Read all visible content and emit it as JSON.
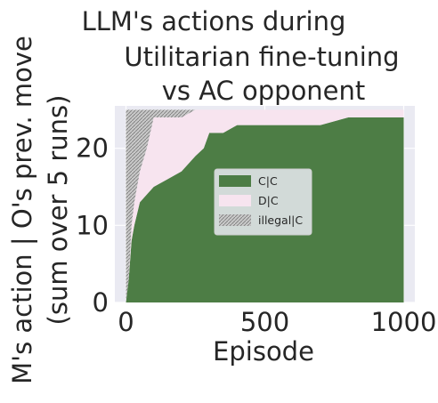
{
  "chart_data": {
    "type": "area",
    "title": [
      "LLM's actions during",
      "Utilitarian fine-tuning",
      "vs AC opponent"
    ],
    "xlabel": "Episode",
    "ylabel": [
      "M's action | O's prev. move",
      "(sum over 5 runs)"
    ],
    "xlim": [
      -40,
      1040
    ],
    "ylim": [
      0,
      25.5
    ],
    "xticks": [
      0,
      500,
      1000
    ],
    "yticks": [
      0,
      10,
      20
    ],
    "grid": true,
    "legend_position": "center",
    "colors": {
      "C|C": "#4d7d45",
      "D|C": "#f7e4ef",
      "illegal|C": "#9e9e9e",
      "plot_bg": "#eaeaf2"
    },
    "series": [
      {
        "name": "C|C",
        "x": [
          0,
          10,
          20,
          30,
          50,
          75,
          100,
          150,
          200,
          250,
          280,
          300,
          350,
          400,
          500,
          600,
          700,
          800,
          900,
          1000
        ],
        "values": [
          0,
          3,
          8,
          10,
          13,
          14,
          15,
          16,
          17,
          19,
          20,
          22,
          22,
          23,
          23,
          23,
          23,
          24,
          24,
          24
        ]
      },
      {
        "name": "D|C",
        "x": [
          0,
          10,
          20,
          30,
          50,
          75,
          100,
          150,
          200,
          250,
          280,
          300,
          350,
          400,
          500,
          600,
          700,
          800,
          900,
          1000
        ],
        "values": [
          0,
          0,
          2,
          3,
          4,
          6,
          9,
          8,
          7,
          6,
          5,
          3,
          3,
          2,
          2,
          2,
          2,
          1,
          1,
          1
        ]
      },
      {
        "name": "illegal|C",
        "x": [
          0,
          10,
          20,
          30,
          50,
          75,
          100,
          150,
          200,
          250,
          280,
          300,
          350,
          400,
          500,
          600,
          700,
          800,
          900,
          1000
        ],
        "values": [
          25,
          22,
          15,
          12,
          8,
          5,
          1,
          1,
          1,
          0,
          0,
          0,
          0,
          0,
          0,
          0,
          0,
          0,
          0,
          0
        ]
      }
    ]
  }
}
